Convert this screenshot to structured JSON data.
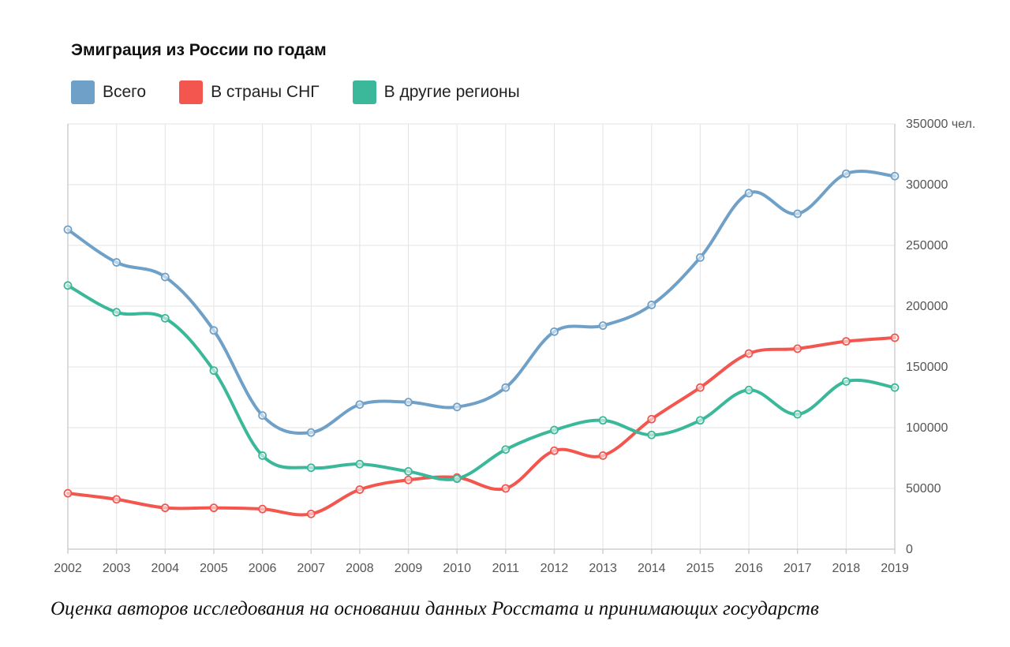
{
  "chart_data": {
    "type": "line",
    "title": "Эмиграция из России по годам",
    "x": [
      2002,
      2003,
      2004,
      2005,
      2006,
      2007,
      2008,
      2009,
      2010,
      2011,
      2012,
      2013,
      2014,
      2015,
      2016,
      2017,
      2018,
      2019
    ],
    "x_tick_labels": [
      "2002",
      "2003",
      "2004",
      "2005",
      "2006",
      "2007",
      "2008",
      "2009",
      "2010",
      "2011",
      "2012",
      "2013",
      "2014",
      "2015",
      "2016",
      "2017",
      "2018",
      "2019"
    ],
    "y_tick_labels": [
      "350000 чел.",
      "300000",
      "250000",
      "200000",
      "150000",
      "100000",
      "50000",
      "0"
    ],
    "ylim": [
      0,
      350000
    ],
    "y_axis_side": "right",
    "grid": true,
    "legend_position": "top-left",
    "series": [
      {
        "name": "Всего",
        "color": "#6fa0c8",
        "values": [
          263000,
          236000,
          224000,
          180000,
          110000,
          96000,
          119000,
          121000,
          117000,
          133000,
          179000,
          184000,
          201000,
          240000,
          293000,
          276000,
          309000,
          307000
        ]
      },
      {
        "name": "В страны СНГ",
        "color": "#f2564f",
        "values": [
          46000,
          41000,
          34000,
          34000,
          33000,
          29000,
          49000,
          57000,
          59000,
          50000,
          81000,
          77000,
          107000,
          133000,
          161000,
          165000,
          171000,
          174000
        ]
      },
      {
        "name": "В другие регионы",
        "color": "#3bb89a",
        "values": [
          217000,
          195000,
          190000,
          147000,
          77000,
          67000,
          70000,
          64000,
          58000,
          82000,
          98000,
          106000,
          94000,
          106000,
          131000,
          111000,
          138000,
          133000
        ]
      }
    ]
  },
  "caption": "Оценка авторов исследования на основании данных Росстата и принимающих государств"
}
